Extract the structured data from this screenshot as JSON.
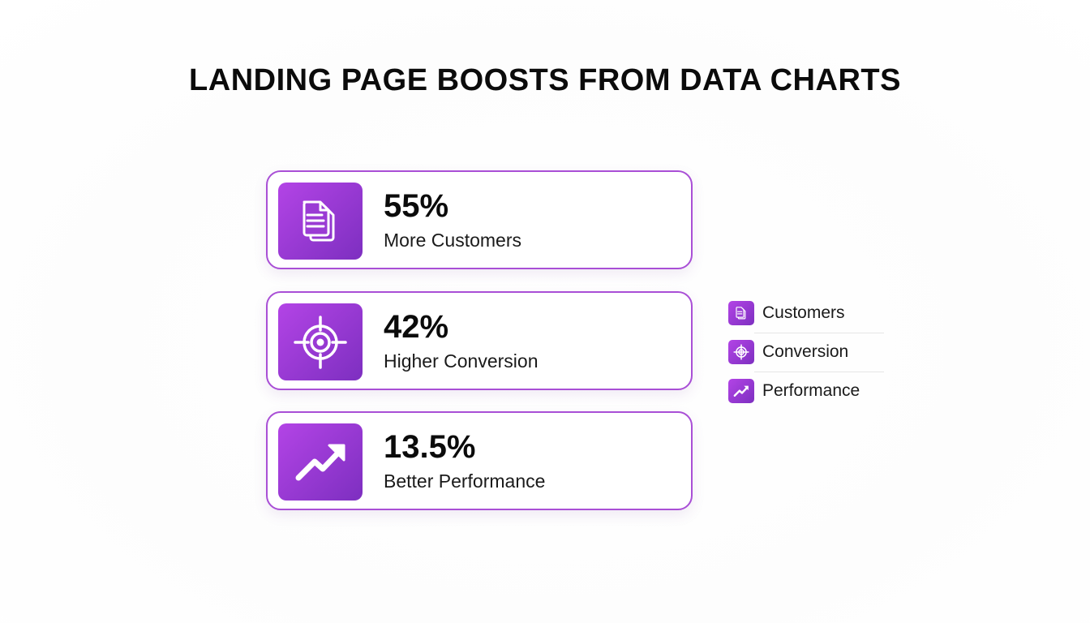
{
  "title": "LANDING PAGE BOOSTS FROM DATA CHARTS",
  "colors": {
    "accent_start": "#b344e6",
    "accent_end": "#7d2fc0",
    "card_border": "#a94fd6"
  },
  "cards": [
    {
      "value": "55%",
      "label": "More Customers",
      "icon": "document-icon"
    },
    {
      "value": "42%",
      "label": "Higher Conversion",
      "icon": "target-icon"
    },
    {
      "value": "13.5%",
      "label": "Better Performance",
      "icon": "trending-up-icon"
    }
  ],
  "legend": [
    {
      "label": "Customers",
      "icon": "document-icon"
    },
    {
      "label": "Conversion",
      "icon": "target-icon"
    },
    {
      "label": "Performance",
      "icon": "trending-up-icon"
    }
  ]
}
